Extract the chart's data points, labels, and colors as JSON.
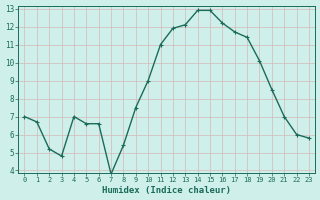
{
  "x": [
    0,
    1,
    2,
    3,
    4,
    5,
    6,
    7,
    8,
    9,
    10,
    11,
    12,
    13,
    14,
    15,
    16,
    17,
    18,
    19,
    20,
    21,
    22,
    23
  ],
  "y": [
    7.0,
    6.7,
    5.2,
    4.8,
    7.0,
    6.6,
    6.6,
    3.8,
    5.4,
    7.5,
    9.0,
    11.0,
    11.9,
    12.1,
    12.9,
    12.9,
    12.2,
    11.7,
    11.4,
    10.1,
    8.5,
    7.0,
    6.0,
    5.8
  ],
  "xlabel": "Humidex (Indice chaleur)",
  "ylim": [
    4,
    13
  ],
  "xlim": [
    -0.5,
    23.5
  ],
  "yticks": [
    4,
    5,
    6,
    7,
    8,
    9,
    10,
    11,
    12,
    13
  ],
  "xticks": [
    0,
    1,
    2,
    3,
    4,
    5,
    6,
    7,
    8,
    9,
    10,
    11,
    12,
    13,
    14,
    15,
    16,
    17,
    18,
    19,
    20,
    21,
    22,
    23
  ],
  "line_color": "#1a6b5a",
  "marker_color": "#1a6b5a",
  "bg_color": "#cff0ea",
  "grid_color": "#d4b8b8",
  "axis_color": "#1a6b5a",
  "label_color": "#1a6b5a",
  "xlabel_fontsize": 6.5,
  "tick_fontsize": 5.5,
  "xtick_fontsize": 5.0,
  "linewidth": 1.0,
  "markersize": 3.0
}
